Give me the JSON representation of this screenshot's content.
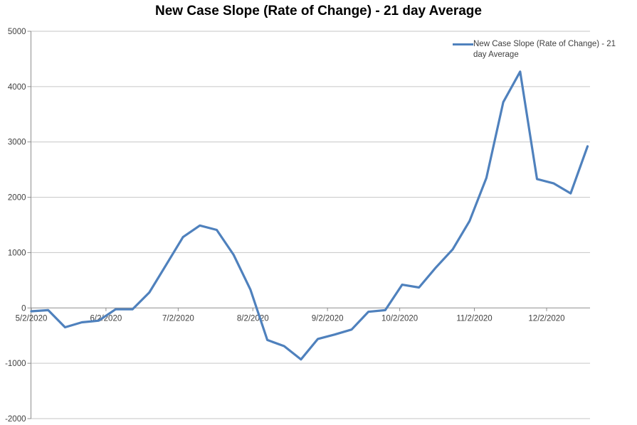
{
  "chart_data": {
    "type": "line",
    "title": "New Case Slope (Rate of Change) - 21 day Average",
    "xlabel": "",
    "ylabel": "",
    "ylim": [
      -2000,
      5000
    ],
    "y_step": 1000,
    "y_tick_labels": [
      "5000",
      "4000",
      "3000",
      "2000",
      "1000",
      "0",
      "-1000",
      "-2000"
    ],
    "x_tick_labels": [
      "5/2/2020",
      "6/2/2020",
      "7/2/2020",
      "8/2/2020",
      "9/2/2020",
      "10/2/2020",
      "11/2/2020",
      "12/2/2020"
    ],
    "grid": "horizontal",
    "legend": {
      "position": "top-right",
      "entries": [
        {
          "label": "New Case Slope (Rate of Change) - 21 day Average",
          "color": "#4F81BD"
        }
      ]
    },
    "series": [
      {
        "name": "New Case Slope (Rate of Change) - 21 day Average",
        "color": "#4F81BD",
        "x": [
          "5/2/2020",
          "5/9/2020",
          "5/16/2020",
          "5/23/2020",
          "5/30/2020",
          "6/6/2020",
          "6/13/2020",
          "6/20/2020",
          "6/27/2020",
          "7/4/2020",
          "7/11/2020",
          "7/18/2020",
          "7/25/2020",
          "8/1/2020",
          "8/8/2020",
          "8/15/2020",
          "8/22/2020",
          "8/29/2020",
          "9/5/2020",
          "9/12/2020",
          "9/19/2020",
          "9/26/2020",
          "10/3/2020",
          "10/10/2020",
          "10/17/2020",
          "10/24/2020",
          "10/31/2020",
          "11/7/2020",
          "11/14/2020",
          "11/21/2020",
          "11/28/2020",
          "12/5/2020",
          "12/12/2020",
          "12/19/2020"
        ],
        "values": [
          -60,
          -40,
          -350,
          -260,
          -230,
          -25,
          -25,
          280,
          780,
          1280,
          1490,
          1410,
          960,
          330,
          -580,
          -690,
          -930,
          -560,
          -480,
          -390,
          -70,
          -40,
          420,
          370,
          730,
          1060,
          1570,
          2350,
          3720,
          4270,
          2330,
          2250,
          2070,
          2920
        ]
      }
    ],
    "colors": {
      "line": "#4F81BD",
      "gridline": "#C6C6C6",
      "axis": "#8E8E8E",
      "tick_text": "#3F3F3F",
      "title_text": "#000000",
      "background": "#FFFFFF"
    }
  }
}
